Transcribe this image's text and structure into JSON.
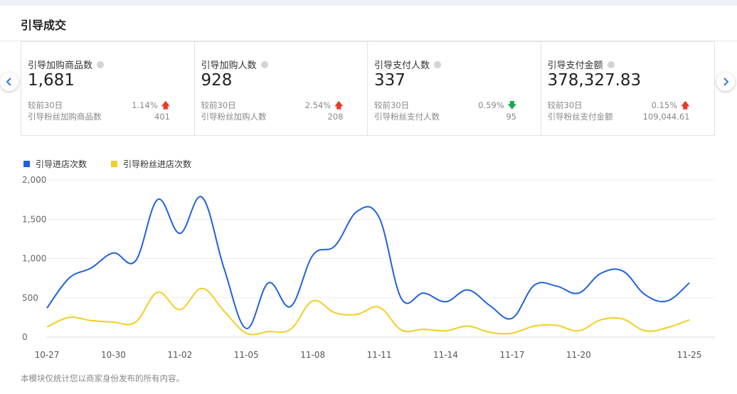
{
  "page": {
    "title": "引导成交"
  },
  "nav": {
    "prev_glyph": "‹",
    "next_glyph": "›"
  },
  "metrics": [
    {
      "label": "引导加购商品数",
      "value": "1,681",
      "compare_label": "较前30日",
      "compare_pct": "1.14%",
      "trend": "up",
      "fan_label": "引导粉丝加购商品数",
      "fan_value": "401"
    },
    {
      "label": "引导加购人数",
      "value": "928",
      "compare_label": "较前30日",
      "compare_pct": "2.54%",
      "trend": "up",
      "fan_label": "引导粉丝加购人数",
      "fan_value": "208"
    },
    {
      "label": "引导支付人数",
      "value": "337",
      "compare_label": "较前30日",
      "compare_pct": "0.59%",
      "trend": "down",
      "fan_label": "引导粉丝支付人数",
      "fan_value": "95"
    },
    {
      "label": "引导支付金额",
      "value": "378,327.83",
      "compare_label": "较前30日",
      "compare_pct": "0.15%",
      "trend": "up",
      "fan_label": "引导粉丝支付金额",
      "fan_value": "109,044.61"
    }
  ],
  "chart_data": {
    "type": "line",
    "x": [
      "10-27",
      "10-28",
      "10-29",
      "10-30",
      "10-31",
      "11-01",
      "11-02",
      "11-03",
      "11-04",
      "11-05",
      "11-06",
      "11-07",
      "11-08",
      "11-09",
      "11-10",
      "11-11",
      "11-12",
      "11-13",
      "11-14",
      "11-15",
      "11-16",
      "11-17",
      "11-18",
      "11-19",
      "11-20",
      "11-21",
      "11-22",
      "11-23",
      "11-24",
      "11-25"
    ],
    "x_tick_labels": [
      "10-27",
      "10-30",
      "11-02",
      "11-05",
      "11-08",
      "11-11",
      "11-14",
      "11-17",
      "11-20",
      "11-25"
    ],
    "ylim": [
      0,
      2000
    ],
    "y_ticks": [
      0,
      500,
      1000,
      1500,
      2000
    ],
    "y_tick_labels": [
      "0",
      "500",
      "1,000",
      "1,500",
      "2,000"
    ],
    "grid": true,
    "legend_position": "top-left",
    "series": [
      {
        "name": "引导进店次数",
        "color": "#2162d9",
        "values": [
          370,
          750,
          880,
          1070,
          970,
          1750,
          1320,
          1780,
          870,
          110,
          690,
          390,
          1040,
          1160,
          1600,
          1520,
          490,
          560,
          450,
          600,
          400,
          240,
          660,
          650,
          560,
          810,
          840,
          540,
          460,
          690
        ]
      },
      {
        "name": "引导粉丝进店次数",
        "color": "#f2cf23",
        "values": [
          130,
          250,
          210,
          190,
          190,
          570,
          350,
          620,
          330,
          50,
          70,
          100,
          460,
          310,
          290,
          380,
          90,
          100,
          80,
          140,
          60,
          50,
          140,
          150,
          80,
          220,
          230,
          80,
          120,
          220
        ]
      }
    ]
  },
  "footnote": "本模块仅统计您以商家身份发布的所有内容。"
}
